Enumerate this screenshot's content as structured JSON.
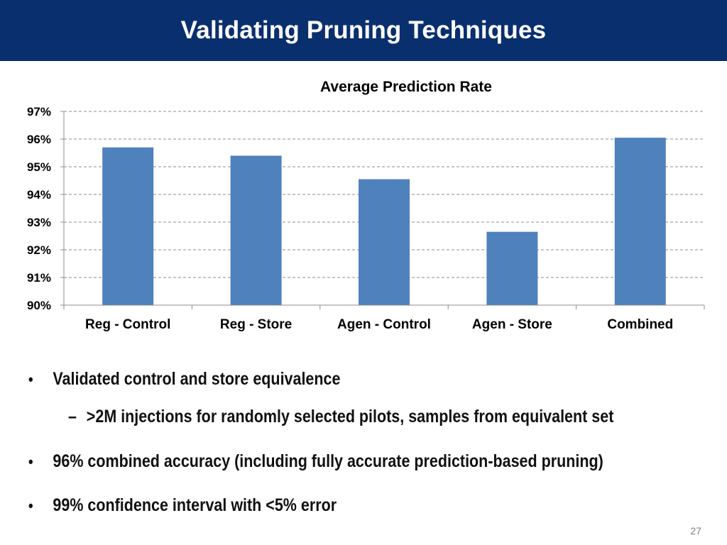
{
  "slide": {
    "title": "Validating Pruning Techniques",
    "page_number": "27",
    "accent_color": "#0a2f6e"
  },
  "bullets": [
    {
      "text": "Validated control and store equivalence",
      "sub": ">2M injections for randomly selected pilots, samples from equivalent set"
    },
    {
      "text": "96% combined accuracy (including fully accurate prediction-based pruning)"
    },
    {
      "text": "99% confidence interval with <5% error"
    }
  ],
  "chart_data": {
    "type": "bar",
    "title": "Average Prediction Rate",
    "categories": [
      "Reg - Control",
      "Reg - Store",
      "Agen - Control",
      "Agen - Store",
      "Combined"
    ],
    "series": [
      {
        "values": [
          95.7,
          95.4,
          94.55,
          92.65,
          96.05
        ],
        "color": "#4f81bd"
      }
    ],
    "ylim": [
      90,
      97
    ],
    "yticks": [
      90,
      91,
      92,
      93,
      94,
      95,
      96,
      97
    ],
    "ytick_labels": [
      "90%",
      "91%",
      "92%",
      "93%",
      "94%",
      "95%",
      "96%",
      "97%"
    ],
    "grid": true,
    "xlabel": "",
    "ylabel": ""
  }
}
